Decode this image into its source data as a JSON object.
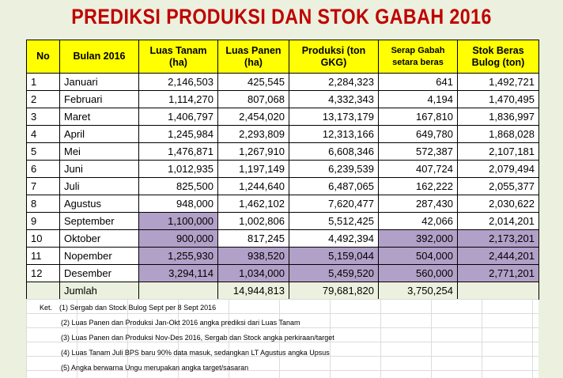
{
  "header": {
    "title": "PREDIKSI PRODUKSI DAN STOK GABAH 2016"
  },
  "table": {
    "columns": [
      "No",
      "Bulan 2016",
      "Luas Tanam (ha)",
      "Luas Panen (ha)",
      "Produksi (ton GKG)",
      "Serap Gabah setara beras",
      "Stok Beras Bulog (ton)"
    ],
    "rows": [
      [
        "1",
        "Januari",
        "2,146,503",
        "425,545",
        "2,284,323",
        "641",
        "1,492,721"
      ],
      [
        "2",
        "Februari",
        "1,114,270",
        "807,068",
        "4,332,343",
        "4,194",
        "1,470,495"
      ],
      [
        "3",
        "Maret",
        "1,406,797",
        "2,454,020",
        "13,173,179",
        "167,810",
        "1,836,997"
      ],
      [
        "4",
        "April",
        "1,245,984",
        "2,293,809",
        "12,313,166",
        "649,780",
        "1,868,028"
      ],
      [
        "5",
        "Mei",
        "1,476,871",
        "1,267,910",
        "6,608,346",
        "572,387",
        "2,107,181"
      ],
      [
        "6",
        "Juni",
        "1,012,935",
        "1,197,149",
        "6,239,539",
        "407,724",
        "2,079,494"
      ],
      [
        "7",
        "Juli",
        "825,500",
        "1,244,640",
        "6,487,065",
        "162,222",
        "2,055,377"
      ],
      [
        "8",
        "Agustus",
        "948,000",
        "1,462,102",
        "7,620,477",
        "287,430",
        "2,030,622"
      ],
      [
        "9",
        "September",
        "1,100,000",
        "1,002,806",
        "5,512,425",
        "42,066",
        "2,014,201"
      ],
      [
        "10",
        "Oktober",
        "900,000",
        "817,245",
        "4,492,394",
        "392,000",
        "2,173,201"
      ],
      [
        "11",
        "Nopember",
        "1,255,930",
        "938,520",
        "5,159,044",
        "504,000",
        "2,444,201"
      ],
      [
        "12",
        "Desember",
        "3,294,114",
        "1,034,000",
        "5,459,520",
        "560,000",
        "2,771,201"
      ]
    ],
    "total": {
      "label": "Jumlah",
      "values": [
        "14,944,813",
        "79,681,820",
        "3,750,254"
      ]
    }
  },
  "notes": {
    "label": "Ket.",
    "items": [
      "(1) Sergab dan Stock Bulog Sept per 8 Sept 2016",
      "(2) Luas Panen dan Produksi Jan-Okt 2016 angka prediksi dari Luas Tanam",
      "(3) Luas Panen dan Produksi Nov-Des 2016, Sergab dan Stock  angka perkiraan/target",
      "(4) Luas Tanam Juli BPS baru 90% data masuk, sedangkan LT Agustus angka Upsus",
      "(5) Angka berwarna Ungu merupakan angka target/sasaran"
    ]
  }
}
